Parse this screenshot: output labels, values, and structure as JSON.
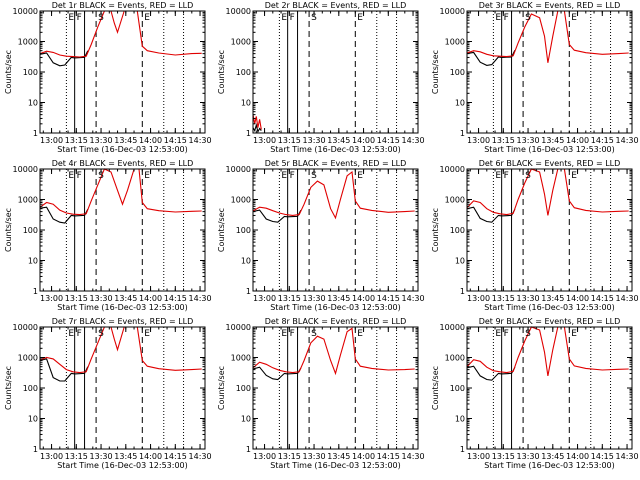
{
  "common": {
    "title_suffix": "BLACK = Events, RED = LLD",
    "xlabel": "Start Time (16-Dec-03 12:53:00)",
    "ylabel": "Counts/sec",
    "x_tick_labels": [
      "13:00",
      "13:15",
      "13:30",
      "13:45",
      "14:00",
      "14:15",
      "14:30"
    ],
    "y_tick_labels": [
      "1",
      "10",
      "100",
      "1000",
      "10000"
    ],
    "event_letters": [
      "E",
      "F",
      "S",
      "E"
    ],
    "colors": {
      "events": "#000000",
      "lld": "#e00000"
    }
  },
  "chart_data": [
    {
      "type": "line",
      "detector": "Det 1r",
      "title": "Det 1r BLACK = Events, RED = LLD",
      "xlabel": "Start Time (16-Dec-03 12:53:00)",
      "ylabel": "Counts/sec",
      "xlim": [
        "12:53",
        "14:33"
      ],
      "ylim": [
        1,
        10000
      ],
      "yscale": "log",
      "vlines_solid": [
        "13:14",
        "13:20"
      ],
      "vlines_dashed": [
        "13:27",
        "13:55"
      ],
      "vlines_dotted": [
        "13:09",
        "14:08",
        "14:20"
      ],
      "series": [
        {
          "name": "Events",
          "color": "black",
          "x": [
            "12:53",
            "12:57",
            "13:01",
            "13:05",
            "13:08",
            "13:12",
            "13:14",
            "13:20",
            "13:22"
          ],
          "y": [
            380,
            420,
            200,
            160,
            170,
            300,
            290,
            300,
            500
          ]
        },
        {
          "name": "LLD",
          "color": "red",
          "x": [
            "12:53",
            "12:57",
            "13:01",
            "13:05",
            "13:09",
            "13:13",
            "13:17",
            "13:21",
            "13:24",
            "13:28",
            "13:32",
            "13:36",
            "13:38",
            "13:40",
            "13:44",
            "13:46",
            "13:52",
            "13:55",
            "13:58",
            "14:05",
            "14:15",
            "14:25",
            "14:31"
          ],
          "y": [
            400,
            480,
            440,
            360,
            330,
            320,
            310,
            330,
            800,
            3000,
            10000,
            10000,
            4000,
            2000,
            10000,
            10000,
            10000,
            700,
            500,
            420,
            360,
            400,
            410
          ]
        }
      ]
    },
    {
      "type": "line",
      "detector": "Det 2r",
      "title": "Det 2r BLACK = Events, RED = LLD",
      "xlabel": "Start Time (16-Dec-03 12:53:00)",
      "ylabel": "Counts/sec",
      "xlim": [
        "12:53",
        "14:33"
      ],
      "ylim": [
        1,
        10000
      ],
      "yscale": "log",
      "vlines_solid": [
        "13:14",
        "13:20"
      ],
      "vlines_dashed": [
        "13:27",
        "13:55"
      ],
      "vlines_dotted": [
        "13:09",
        "14:08",
        "14:20"
      ],
      "series": [
        {
          "name": "Events",
          "color": "black",
          "x": [
            "12:53",
            "12:54",
            "12:55",
            "12:56",
            "12:57",
            "12:58"
          ],
          "y": [
            1.5,
            1.2,
            1.8,
            1.1,
            1.4,
            1.2
          ]
        },
        {
          "name": "LLD",
          "color": "red",
          "x": [
            "12:53",
            "12:54",
            "12:55",
            "12:56",
            "12:57",
            "12:58"
          ],
          "y": [
            4,
            2,
            3.5,
            1.5,
            2.8,
            1.3
          ]
        }
      ]
    },
    {
      "type": "line",
      "detector": "Det 3r",
      "title": "Det 3r BLACK = Events, RED = LLD",
      "xlabel": "Start Time (16-Dec-03 12:53:00)",
      "ylabel": "Counts/sec",
      "xlim": [
        "12:53",
        "14:33"
      ],
      "ylim": [
        1,
        10000
      ],
      "yscale": "log",
      "vlines_solid": [
        "13:14",
        "13:20"
      ],
      "vlines_dashed": [
        "13:27",
        "13:55"
      ],
      "vlines_dotted": [
        "13:09",
        "14:08",
        "14:20"
      ],
      "series": [
        {
          "name": "Events",
          "color": "black",
          "x": [
            "12:53",
            "12:57",
            "13:01",
            "13:05",
            "13:08",
            "13:12",
            "13:14",
            "13:20",
            "13:22"
          ],
          "y": [
            400,
            440,
            210,
            165,
            175,
            310,
            300,
            310,
            520
          ]
        },
        {
          "name": "LLD",
          "color": "red",
          "x": [
            "12:53",
            "12:57",
            "13:01",
            "13:05",
            "13:09",
            "13:13",
            "13:17",
            "13:21",
            "13:24",
            "13:28",
            "13:32",
            "13:37",
            "13:40",
            "13:42",
            "13:45",
            "13:48",
            "13:52",
            "13:55",
            "13:58",
            "14:05",
            "14:15",
            "14:25",
            "14:31"
          ],
          "y": [
            420,
            500,
            460,
            380,
            340,
            330,
            320,
            340,
            900,
            3000,
            8000,
            6000,
            1500,
            200,
            1500,
            10000,
            10000,
            800,
            520,
            430,
            380,
            400,
            420
          ]
        }
      ]
    },
    {
      "type": "line",
      "detector": "Det 4r",
      "title": "Det 4r BLACK = Events, RED = LLD",
      "xlabel": "Start Time (16-Dec-03 12:53:00)",
      "ylabel": "Counts/sec",
      "xlim": [
        "12:53",
        "14:33"
      ],
      "ylim": [
        1,
        10000
      ],
      "yscale": "log",
      "vlines_solid": [
        "13:14",
        "13:20"
      ],
      "vlines_dashed": [
        "13:27",
        "13:55"
      ],
      "vlines_dotted": [
        "13:09",
        "14:08",
        "14:20"
      ],
      "series": [
        {
          "name": "Events",
          "color": "black",
          "x": [
            "12:53",
            "12:57",
            "13:01",
            "13:05",
            "13:08",
            "13:12",
            "13:14",
            "13:20",
            "13:22"
          ],
          "y": [
            520,
            560,
            230,
            180,
            170,
            300,
            290,
            300,
            480
          ]
        },
        {
          "name": "LLD",
          "color": "red",
          "x": [
            "12:53",
            "12:57",
            "13:01",
            "13:05",
            "13:09",
            "13:13",
            "13:17",
            "13:21",
            "13:24",
            "13:28",
            "13:32",
            "13:36",
            "13:40",
            "13:43",
            "13:46",
            "13:50",
            "13:53",
            "13:55",
            "13:58",
            "14:05",
            "14:15",
            "14:25",
            "14:31"
          ],
          "y": [
            560,
            800,
            700,
            450,
            360,
            330,
            320,
            340,
            900,
            3000,
            10000,
            8000,
            2000,
            700,
            2000,
            10000,
            10000,
            800,
            500,
            430,
            390,
            410,
            420
          ]
        }
      ]
    },
    {
      "type": "line",
      "detector": "Det 5r",
      "title": "Det 5r BLACK = Events, RED = LLD",
      "xlabel": "Start Time (16-Dec-03 12:53:00)",
      "ylabel": "Counts/sec",
      "xlim": [
        "12:53",
        "14:33"
      ],
      "ylim": [
        1,
        10000
      ],
      "yscale": "log",
      "vlines_solid": [
        "13:14",
        "13:20"
      ],
      "vlines_dashed": [
        "13:27",
        "13:55"
      ],
      "vlines_dotted": [
        "13:09",
        "14:08",
        "14:20"
      ],
      "series": [
        {
          "name": "Events",
          "color": "black",
          "x": [
            "12:53",
            "12:57",
            "13:01",
            "13:05",
            "13:08",
            "13:12",
            "13:14",
            "13:20",
            "13:22"
          ],
          "y": [
            400,
            450,
            230,
            190,
            180,
            280,
            270,
            280,
            450
          ]
        },
        {
          "name": "LLD",
          "color": "red",
          "x": [
            "12:53",
            "12:57",
            "13:01",
            "13:05",
            "13:09",
            "13:13",
            "13:17",
            "13:21",
            "13:24",
            "13:28",
            "13:32",
            "13:36",
            "13:40",
            "13:43",
            "13:46",
            "13:50",
            "13:53",
            "13:55",
            "13:58",
            "14:05",
            "14:15",
            "14:25",
            "14:31"
          ],
          "y": [
            420,
            560,
            520,
            430,
            360,
            320,
            300,
            320,
            700,
            2500,
            4000,
            3000,
            500,
            250,
            1000,
            6000,
            8000,
            900,
            520,
            440,
            380,
            400,
            420
          ]
        }
      ]
    },
    {
      "type": "line",
      "detector": "Det 6r",
      "title": "Det 6r BLACK = Events, RED = LLD",
      "xlabel": "Start Time (16-Dec-03 12:53:00)",
      "ylabel": "Counts/sec",
      "xlim": [
        "12:53",
        "14:33"
      ],
      "ylim": [
        1,
        10000
      ],
      "yscale": "log",
      "vlines_solid": [
        "13:14",
        "13:20"
      ],
      "vlines_dashed": [
        "13:27",
        "13:55"
      ],
      "vlines_dotted": [
        "13:09",
        "14:08",
        "14:20"
      ],
      "series": [
        {
          "name": "Events",
          "color": "black",
          "x": [
            "12:53",
            "12:57",
            "13:01",
            "13:05",
            "13:08",
            "13:12",
            "13:14",
            "13:20",
            "13:22"
          ],
          "y": [
            500,
            560,
            240,
            190,
            180,
            300,
            290,
            300,
            480
          ]
        },
        {
          "name": "LLD",
          "color": "red",
          "x": [
            "12:53",
            "12:57",
            "13:01",
            "13:05",
            "13:09",
            "13:13",
            "13:17",
            "13:21",
            "13:24",
            "13:28",
            "13:32",
            "13:37",
            "13:40",
            "13:42",
            "13:45",
            "13:48",
            "13:52",
            "13:55",
            "13:58",
            "14:05",
            "14:15",
            "14:25",
            "14:31"
          ],
          "y": [
            540,
            900,
            800,
            500,
            380,
            340,
            320,
            350,
            1000,
            3500,
            10000,
            8000,
            1500,
            300,
            2000,
            10000,
            10000,
            900,
            540,
            440,
            390,
            410,
            420
          ]
        }
      ]
    },
    {
      "type": "line",
      "detector": "Det 7r",
      "title": "Det 7r BLACK = Events, RED = LLD",
      "xlabel": "Start Time (16-Dec-03 12:53:00)",
      "ylabel": "Counts/sec",
      "xlim": [
        "12:53",
        "14:33"
      ],
      "ylim": [
        1,
        10000
      ],
      "yscale": "log",
      "vlines_solid": [
        "13:14",
        "13:20"
      ],
      "vlines_dashed": [
        "13:27",
        "13:55"
      ],
      "vlines_dotted": [
        "13:09",
        "14:08",
        "14:20"
      ],
      "series": [
        {
          "name": "Events",
          "color": "black",
          "x": [
            "12:53",
            "12:57",
            "13:01",
            "13:05",
            "13:08",
            "13:12",
            "13:14",
            "13:20",
            "13:22"
          ],
          "y": [
            800,
            900,
            220,
            170,
            170,
            300,
            290,
            300,
            500
          ]
        },
        {
          "name": "LLD",
          "color": "red",
          "x": [
            "12:53",
            "12:57",
            "13:01",
            "13:05",
            "13:09",
            "13:13",
            "13:17",
            "13:21",
            "13:24",
            "13:28",
            "13:32",
            "13:36",
            "13:38",
            "13:40",
            "13:44",
            "13:46",
            "13:52",
            "13:55",
            "13:58",
            "14:05",
            "14:15",
            "14:25",
            "14:31"
          ],
          "y": [
            850,
            1000,
            900,
            600,
            400,
            340,
            320,
            340,
            900,
            3000,
            10000,
            10000,
            4000,
            1800,
            10000,
            10000,
            10000,
            800,
            520,
            430,
            380,
            400,
            420
          ]
        }
      ]
    },
    {
      "type": "line",
      "detector": "Det 8r",
      "title": "Det 8r BLACK = Events, RED = LLD",
      "xlabel": "Start Time (16-Dec-03 12:53:00)",
      "ylabel": "Counts/sec",
      "xlim": [
        "12:53",
        "14:33"
      ],
      "ylim": [
        1,
        10000
      ],
      "yscale": "log",
      "vlines_solid": [
        "13:14",
        "13:20"
      ],
      "vlines_dashed": [
        "13:27",
        "13:55"
      ],
      "vlines_dotted": [
        "13:09",
        "14:08",
        "14:20"
      ],
      "series": [
        {
          "name": "Events",
          "color": "black",
          "x": [
            "12:53",
            "12:57",
            "13:01",
            "13:05",
            "13:08",
            "13:12",
            "13:14",
            "13:20",
            "13:22"
          ],
          "y": [
            420,
            480,
            260,
            200,
            190,
            300,
            290,
            300,
            450
          ]
        },
        {
          "name": "LLD",
          "color": "red",
          "x": [
            "12:53",
            "12:57",
            "13:01",
            "13:05",
            "13:09",
            "13:13",
            "13:17",
            "13:21",
            "13:24",
            "13:28",
            "13:32",
            "13:36",
            "13:40",
            "13:43",
            "13:46",
            "13:50",
            "13:53",
            "13:55",
            "13:58",
            "14:05",
            "14:15",
            "14:25",
            "14:31"
          ],
          "y": [
            460,
            700,
            600,
            460,
            380,
            340,
            320,
            340,
            800,
            3000,
            5000,
            4000,
            800,
            300,
            1200,
            7000,
            9000,
            900,
            520,
            440,
            390,
            400,
            420
          ]
        }
      ]
    },
    {
      "type": "line",
      "detector": "Det 9r",
      "title": "Det 9r BLACK = Events, RED = LLD",
      "xlabel": "Start Time (16-Dec-03 12:53:00)",
      "ylabel": "Counts/sec",
      "xlim": [
        "12:53",
        "14:33"
      ],
      "ylim": [
        1,
        10000
      ],
      "yscale": "log",
      "vlines_solid": [
        "13:14",
        "13:20"
      ],
      "vlines_dashed": [
        "13:27",
        "13:55"
      ],
      "vlines_dotted": [
        "13:09",
        "14:08",
        "14:20"
      ],
      "series": [
        {
          "name": "Events",
          "color": "black",
          "x": [
            "12:53",
            "12:57",
            "13:01",
            "13:05",
            "13:08",
            "13:12",
            "13:14",
            "13:20",
            "13:22"
          ],
          "y": [
            460,
            520,
            250,
            190,
            180,
            300,
            290,
            300,
            480
          ]
        },
        {
          "name": "LLD",
          "color": "red",
          "x": [
            "12:53",
            "12:57",
            "13:01",
            "13:05",
            "13:09",
            "13:13",
            "13:17",
            "13:21",
            "13:24",
            "13:28",
            "13:32",
            "13:37",
            "13:40",
            "13:42",
            "13:45",
            "13:48",
            "13:52",
            "13:55",
            "13:58",
            "14:05",
            "14:15",
            "14:25",
            "14:31"
          ],
          "y": [
            500,
            850,
            750,
            480,
            370,
            340,
            320,
            350,
            1000,
            3500,
            10000,
            8000,
            1500,
            250,
            1800,
            10000,
            10000,
            900,
            530,
            440,
            390,
            410,
            420
          ]
        }
      ]
    }
  ]
}
